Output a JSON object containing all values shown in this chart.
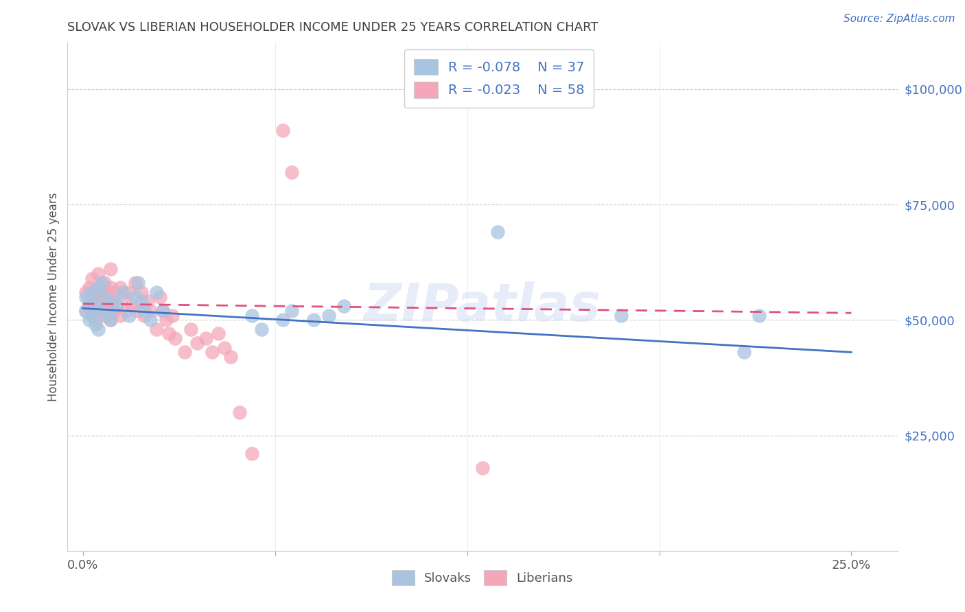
{
  "title": "SLOVAK VS LIBERIAN HOUSEHOLDER INCOME UNDER 25 YEARS CORRELATION CHART",
  "source": "Source: ZipAtlas.com",
  "xlabel_ticks": [
    "0.0%",
    "25.0%"
  ],
  "xlabel_vals": [
    0.0,
    0.25
  ],
  "xlabel_minor_ticks": [
    0.0625,
    0.125,
    0.1875
  ],
  "ylabel": "Householder Income Under 25 years",
  "ylabel_right_ticks": [
    "$100,000",
    "$75,000",
    "$50,000",
    "$25,000"
  ],
  "ylabel_right_vals": [
    100000,
    75000,
    50000,
    25000
  ],
  "ylim": [
    0,
    110000
  ],
  "xlim": [
    -0.005,
    0.265
  ],
  "watermark": "ZIPatlas",
  "legend_r_slovak": "R = -0.078",
  "legend_n_slovak": "N = 37",
  "legend_r_liberian": "R = -0.023",
  "legend_n_liberian": "N = 58",
  "slovak_color": "#a8c4e0",
  "liberian_color": "#f4a7b9",
  "slovak_line_color": "#4472c4",
  "liberian_line_color": "#e05080",
  "background_color": "#ffffff",
  "grid_color": "#cccccc",
  "title_color": "#404040",
  "right_label_color": "#4472c4",
  "slovak_scatter_x": [
    0.001,
    0.001,
    0.002,
    0.002,
    0.003,
    0.003,
    0.004,
    0.004,
    0.005,
    0.005,
    0.006,
    0.006,
    0.007,
    0.008,
    0.009,
    0.01,
    0.011,
    0.013,
    0.015,
    0.017,
    0.018,
    0.019,
    0.02,
    0.022,
    0.024,
    0.026,
    0.055,
    0.058,
    0.065,
    0.068,
    0.075,
    0.08,
    0.085,
    0.135,
    0.175,
    0.215,
    0.22
  ],
  "slovak_scatter_y": [
    52000,
    55000,
    50000,
    54000,
    51000,
    56000,
    49000,
    53000,
    48000,
    57000,
    52000,
    58000,
    55000,
    51000,
    50000,
    54000,
    53000,
    56000,
    51000,
    55000,
    58000,
    54000,
    52000,
    50000,
    56000,
    52000,
    51000,
    48000,
    50000,
    52000,
    50000,
    51000,
    53000,
    69000,
    51000,
    43000,
    51000
  ],
  "liberian_scatter_x": [
    0.001,
    0.001,
    0.002,
    0.002,
    0.003,
    0.003,
    0.003,
    0.004,
    0.004,
    0.005,
    0.005,
    0.005,
    0.006,
    0.006,
    0.007,
    0.007,
    0.007,
    0.008,
    0.008,
    0.009,
    0.009,
    0.009,
    0.009,
    0.01,
    0.01,
    0.011,
    0.012,
    0.012,
    0.013,
    0.014,
    0.015,
    0.016,
    0.017,
    0.018,
    0.019,
    0.02,
    0.021,
    0.022,
    0.024,
    0.025,
    0.026,
    0.027,
    0.028,
    0.029,
    0.03,
    0.033,
    0.035,
    0.037,
    0.04,
    0.042,
    0.044,
    0.046,
    0.048,
    0.051,
    0.055,
    0.065,
    0.068,
    0.13
  ],
  "liberian_scatter_y": [
    52000,
    56000,
    53000,
    57000,
    51000,
    55000,
    59000,
    50000,
    54000,
    52000,
    56000,
    60000,
    53000,
    57000,
    51000,
    55000,
    58000,
    52000,
    56000,
    50000,
    54000,
    57000,
    61000,
    52000,
    56000,
    53000,
    51000,
    57000,
    55000,
    52000,
    56000,
    53000,
    58000,
    52000,
    56000,
    51000,
    54000,
    52000,
    48000,
    55000,
    52000,
    50000,
    47000,
    51000,
    46000,
    43000,
    48000,
    45000,
    46000,
    43000,
    47000,
    44000,
    42000,
    30000,
    21000,
    91000,
    82000,
    18000
  ]
}
